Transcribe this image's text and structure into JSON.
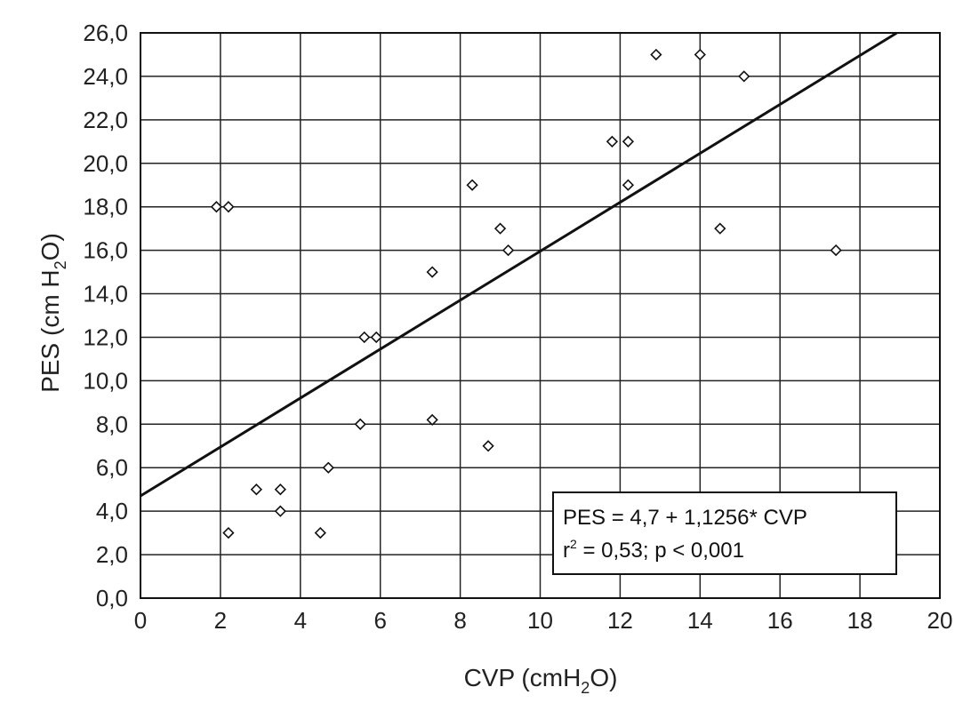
{
  "chart_data": {
    "type": "scatter",
    "x_axis": {
      "label_main": "CVP (cmH",
      "label_sub": "2",
      "label_end": "O)",
      "min": 0,
      "max": 20,
      "tick_step": 2,
      "tick_labels": [
        "0",
        "2",
        "4",
        "6",
        "8",
        "10",
        "12",
        "14",
        "16",
        "18",
        "20"
      ]
    },
    "y_axis": {
      "label_main": "PES (cm H",
      "label_sub": "2",
      "label_end": "O)",
      "min": 0,
      "max": 26,
      "tick_step": 2,
      "tick_labels": [
        "0,0",
        "2,0",
        "4,0",
        "6,0",
        "8,0",
        "10,0",
        "12,0",
        "14,0",
        "16,0",
        "18,0",
        "20,0",
        "22,0",
        "24,0",
        "26,0"
      ]
    },
    "grid": true,
    "marker": "diamond-open",
    "points": [
      {
        "x": 1.9,
        "y": 18.0
      },
      {
        "x": 2.2,
        "y": 18.0
      },
      {
        "x": 2.2,
        "y": 3.0
      },
      {
        "x": 2.9,
        "y": 5.0
      },
      {
        "x": 3.5,
        "y": 5.0
      },
      {
        "x": 3.5,
        "y": 4.0
      },
      {
        "x": 4.5,
        "y": 3.0
      },
      {
        "x": 4.7,
        "y": 6.0
      },
      {
        "x": 5.5,
        "y": 8.0
      },
      {
        "x": 5.6,
        "y": 12.0
      },
      {
        "x": 5.9,
        "y": 12.0
      },
      {
        "x": 7.3,
        "y": 15.0
      },
      {
        "x": 7.3,
        "y": 8.2
      },
      {
        "x": 8.3,
        "y": 19.0
      },
      {
        "x": 8.7,
        "y": 7.0
      },
      {
        "x": 9.0,
        "y": 17.0
      },
      {
        "x": 9.2,
        "y": 16.0
      },
      {
        "x": 11.8,
        "y": 21.0
      },
      {
        "x": 12.2,
        "y": 21.0
      },
      {
        "x": 12.2,
        "y": 19.0
      },
      {
        "x": 12.9,
        "y": 25.0
      },
      {
        "x": 14.0,
        "y": 25.0
      },
      {
        "x": 14.5,
        "y": 17.0
      },
      {
        "x": 15.1,
        "y": 24.0
      },
      {
        "x": 17.4,
        "y": 16.0
      }
    ],
    "regression": {
      "intercept": 4.7,
      "slope": 1.1256
    },
    "annotation": {
      "line1": "PES = 4,7 + 1,1256* CVP",
      "line2_main": "r",
      "line2_sup": "2",
      "line2_rest": " = 0,53; p < 0,001"
    }
  }
}
